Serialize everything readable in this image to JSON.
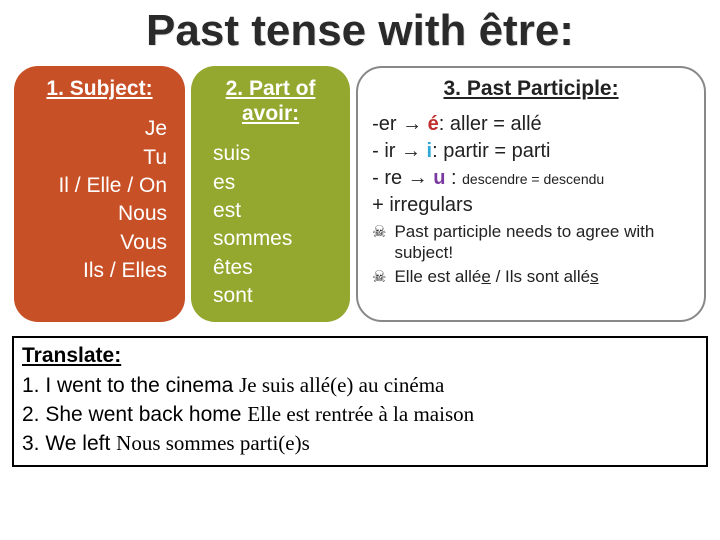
{
  "title": "Past tense with être:",
  "columns": {
    "subject": {
      "heading": "1. Subject:",
      "items": [
        "Je",
        "Tu",
        "Il / Elle / On",
        "Nous",
        "Vous",
        "Ils / Elles"
      ],
      "bg_color": "#c85027",
      "text_color": "#ffffff"
    },
    "avoir": {
      "heading": "2. Part of avoir:",
      "items": [
        "suis",
        "es",
        "est",
        "sommes",
        "êtes",
        "sont"
      ],
      "bg_color": "#94a72e",
      "text_color": "#ffffff"
    },
    "pp": {
      "heading": "3. Past Participle:",
      "rules": {
        "er": {
          "prefix": "-er → ",
          "letter": "é",
          "rest": ": aller = allé"
        },
        "ir": {
          "prefix": "- ir → ",
          "letter": "i",
          "rest": ": partir = parti"
        },
        "re": {
          "prefix": "- re → ",
          "letter": "u",
          "rest": " : ",
          "small": "descendre = descendu"
        },
        "irreg": "+ irregulars"
      },
      "notes": [
        {
          "pre": "Past participle needs to agree with subject!"
        },
        {
          "pre": "Elle est allé",
          "u1": "e",
          "mid": " / Ils sont allé",
          "u2": "s"
        }
      ],
      "colors": {
        "e": "#c03030",
        "i": "#2ea8d8",
        "u": "#7a3aa0"
      }
    }
  },
  "translate": {
    "heading": "Translate:",
    "lines": [
      {
        "q": "1. I went to the cinema ",
        "a": "Je suis allé(e) au cinéma"
      },
      {
        "q": "2. She went back home    ",
        "a": "Elle est rentrée à la maison"
      },
      {
        "q": "3. We left  ",
        "a": "Nous sommes parti(e)s"
      }
    ]
  }
}
